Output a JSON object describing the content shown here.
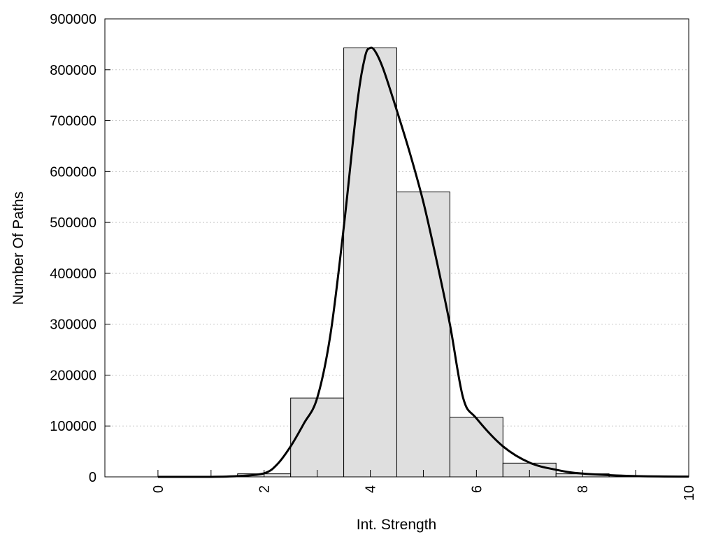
{
  "chart_data": {
    "type": "bar",
    "title": "",
    "xlabel": "Int. Strength",
    "ylabel": "Number Of Paths",
    "xlim": [
      -1,
      10
    ],
    "ylim": [
      0,
      900000
    ],
    "x_ticks": [
      "0",
      "2",
      "4",
      "6",
      "8",
      "10"
    ],
    "x_tick_values": [
      0,
      2,
      4,
      6,
      8,
      10
    ],
    "y_ticks": [
      "0",
      "100000",
      "200000",
      "300000",
      "400000",
      "500000",
      "600000",
      "700000",
      "800000",
      "900000"
    ],
    "y_tick_values": [
      0,
      100000,
      200000,
      300000,
      400000,
      500000,
      600000,
      700000,
      800000,
      900000
    ],
    "grid": "horizontal dotted",
    "legend": "none",
    "bar_width": 1,
    "bars": [
      {
        "x": 0,
        "value": 0
      },
      {
        "x": 1,
        "value": 0
      },
      {
        "x": 2,
        "value": 6000
      },
      {
        "x": 3,
        "value": 155000
      },
      {
        "x": 4,
        "value": 843000
      },
      {
        "x": 5,
        "value": 560000
      },
      {
        "x": 6,
        "value": 117000
      },
      {
        "x": 7,
        "value": 27000
      },
      {
        "x": 8,
        "value": 6000
      },
      {
        "x": 9,
        "value": 2000
      },
      {
        "x": 10,
        "value": 0
      }
    ],
    "curve": [
      {
        "x": 0,
        "y": 0
      },
      {
        "x": 1,
        "y": 0
      },
      {
        "x": 1.5,
        "y": 1500
      },
      {
        "x": 2,
        "y": 7000
      },
      {
        "x": 2.25,
        "y": 25000
      },
      {
        "x": 2.5,
        "y": 60000
      },
      {
        "x": 2.75,
        "y": 105000
      },
      {
        "x": 3,
        "y": 155000
      },
      {
        "x": 3.25,
        "y": 280000
      },
      {
        "x": 3.5,
        "y": 490000
      },
      {
        "x": 3.75,
        "y": 730000
      },
      {
        "x": 3.9,
        "y": 825000
      },
      {
        "x": 4,
        "y": 843000
      },
      {
        "x": 4.1,
        "y": 835000
      },
      {
        "x": 4.25,
        "y": 800000
      },
      {
        "x": 4.5,
        "y": 720000
      },
      {
        "x": 4.75,
        "y": 635000
      },
      {
        "x": 5,
        "y": 540000
      },
      {
        "x": 5.25,
        "y": 425000
      },
      {
        "x": 5.5,
        "y": 300000
      },
      {
        "x": 5.75,
        "y": 155000
      },
      {
        "x": 6,
        "y": 115000
      },
      {
        "x": 6.5,
        "y": 60000
      },
      {
        "x": 7,
        "y": 28000
      },
      {
        "x": 7.5,
        "y": 14000
      },
      {
        "x": 8,
        "y": 6500
      },
      {
        "x": 9,
        "y": 1500
      },
      {
        "x": 10,
        "y": 500
      }
    ],
    "colors": {
      "bar_fill": "#dfdfdf",
      "bar_stroke": "#000000",
      "curve": "#000000",
      "grid": "#c8c8c8",
      "axis": "#000000"
    }
  }
}
